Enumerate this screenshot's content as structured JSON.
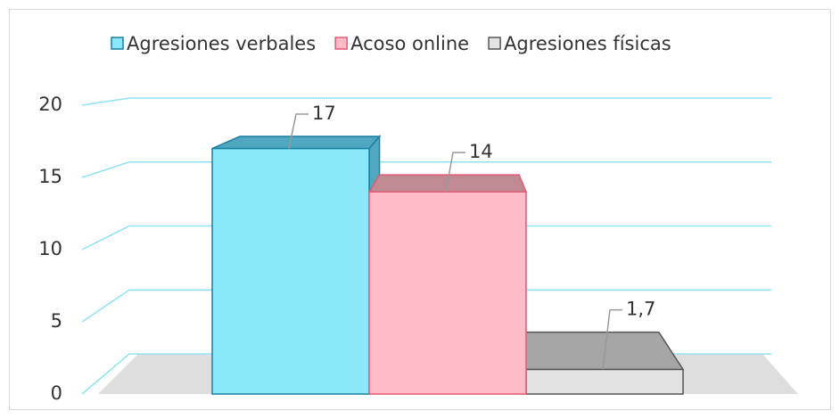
{
  "chart_data": {
    "type": "bar3d",
    "series": [
      {
        "name": "Agresiones verbales",
        "color": "#8be8fb",
        "edge_color": "#1a7fa0",
        "top_color": "#4fa8bf",
        "values": [
          17
        ],
        "value_labels": [
          "17"
        ]
      },
      {
        "name": "Acoso online",
        "color": "#ffbcc8",
        "edge_color": "#e05a75",
        "top_color": "#c08a93",
        "values": [
          14
        ],
        "value_labels": [
          "14"
        ]
      },
      {
        "name": "Agresiones físicas",
        "color": "#e3e3e3",
        "edge_color": "#555555",
        "top_color": "#a6a6a6",
        "values": [
          1.7
        ],
        "value_labels": [
          "1,7"
        ]
      }
    ],
    "ylim": [
      0,
      20
    ],
    "yticks": [
      0,
      5,
      10,
      15,
      20
    ],
    "grid": true,
    "grid_color": "#8fe3f5",
    "legend": "top"
  }
}
